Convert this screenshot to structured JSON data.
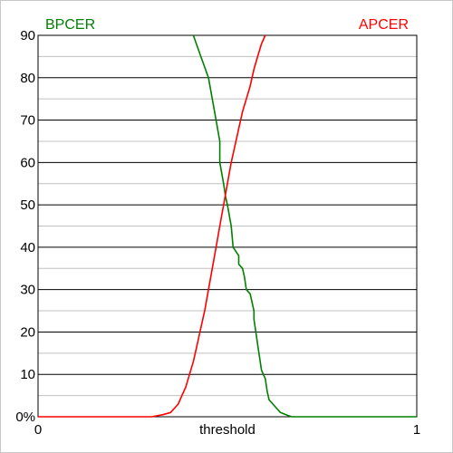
{
  "chart_data": {
    "type": "line",
    "xlabel": "threshold",
    "x_tick_labels": [
      {
        "value": 0,
        "label": "0"
      },
      {
        "value": 1,
        "label": "1"
      }
    ],
    "y_tick_labels": [
      {
        "value": 0,
        "label": "0%"
      },
      {
        "value": 10,
        "label": "10"
      },
      {
        "value": 20,
        "label": "20"
      },
      {
        "value": 30,
        "label": "30"
      },
      {
        "value": 40,
        "label": "40"
      },
      {
        "value": 50,
        "label": "50"
      },
      {
        "value": 60,
        "label": "60"
      },
      {
        "value": 70,
        "label": "70"
      },
      {
        "value": 80,
        "label": "80"
      },
      {
        "value": 90,
        "label": "90"
      }
    ],
    "xlim": [
      0,
      1
    ],
    "ylim": [
      0,
      90
    ],
    "grid": {
      "major_step": 10,
      "minor_step": 5
    },
    "legend": [
      {
        "name": "BPCER",
        "color": "#008000",
        "placement": "top-left"
      },
      {
        "name": "APCER",
        "color": "#ff0000",
        "placement": "top-right"
      }
    ],
    "series": [
      {
        "name": "BPCER",
        "color": "#008000",
        "points": [
          [
            0.41,
            90
          ],
          [
            0.43,
            85
          ],
          [
            0.45,
            80
          ],
          [
            0.46,
            75
          ],
          [
            0.47,
            70
          ],
          [
            0.48,
            65
          ],
          [
            0.48,
            60
          ],
          [
            0.49,
            55
          ],
          [
            0.495,
            52
          ],
          [
            0.5,
            50
          ],
          [
            0.51,
            45
          ],
          [
            0.515,
            40
          ],
          [
            0.53,
            38
          ],
          [
            0.53,
            36
          ],
          [
            0.54,
            35
          ],
          [
            0.545,
            33
          ],
          [
            0.55,
            30
          ],
          [
            0.56,
            29
          ],
          [
            0.565,
            27
          ],
          [
            0.57,
            25
          ],
          [
            0.57,
            23
          ],
          [
            0.575,
            20
          ],
          [
            0.58,
            17
          ],
          [
            0.585,
            14
          ],
          [
            0.59,
            11
          ],
          [
            0.6,
            9
          ],
          [
            0.605,
            6
          ],
          [
            0.61,
            4
          ],
          [
            0.62,
            3
          ],
          [
            0.63,
            2
          ],
          [
            0.64,
            1
          ],
          [
            0.66,
            0.3
          ],
          [
            0.67,
            0
          ],
          [
            1.0,
            0
          ]
        ]
      },
      {
        "name": "APCER",
        "color": "#ff0000",
        "points": [
          [
            0.0,
            0
          ],
          [
            0.3,
            0
          ],
          [
            0.33,
            0.5
          ],
          [
            0.35,
            1
          ],
          [
            0.37,
            3
          ],
          [
            0.38,
            5
          ],
          [
            0.39,
            7
          ],
          [
            0.4,
            10
          ],
          [
            0.41,
            13
          ],
          [
            0.42,
            17
          ],
          [
            0.43,
            21
          ],
          [
            0.44,
            25
          ],
          [
            0.45,
            30
          ],
          [
            0.46,
            35
          ],
          [
            0.47,
            40
          ],
          [
            0.48,
            45
          ],
          [
            0.49,
            50
          ],
          [
            0.5,
            55
          ],
          [
            0.51,
            60
          ],
          [
            0.52,
            64
          ],
          [
            0.53,
            68
          ],
          [
            0.54,
            72
          ],
          [
            0.55,
            75
          ],
          [
            0.56,
            78
          ],
          [
            0.57,
            82
          ],
          [
            0.58,
            85
          ],
          [
            0.59,
            88
          ],
          [
            0.6,
            90
          ]
        ]
      }
    ]
  }
}
